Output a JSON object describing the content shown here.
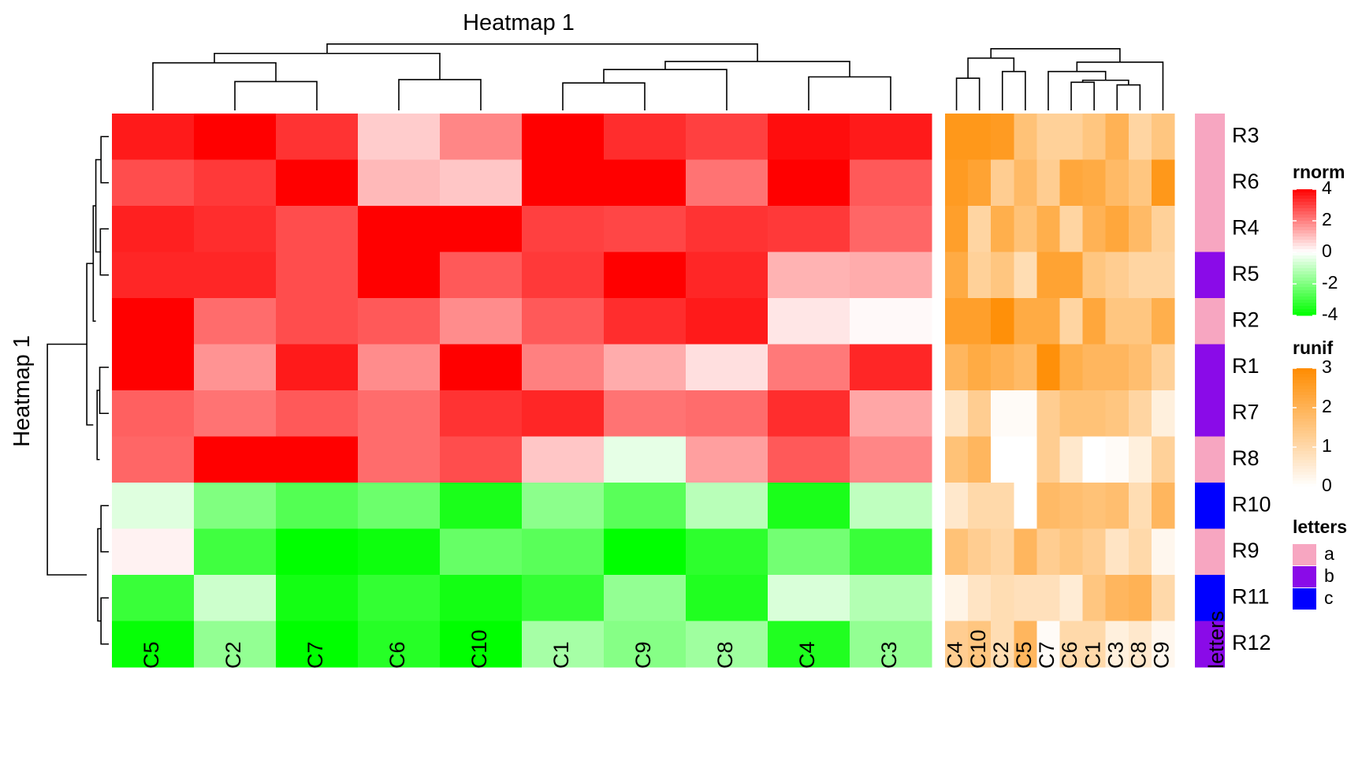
{
  "chart_data": {
    "type": "heatmap",
    "title": "Heatmap 1",
    "row_title": "Heatmap 1",
    "rows": [
      "R3",
      "R6",
      "R4",
      "R5",
      "R2",
      "R1",
      "R7",
      "R8",
      "R10",
      "R9",
      "R11",
      "R12"
    ],
    "rnorm": {
      "name": "rnorm",
      "columns": [
        "C5",
        "C2",
        "C7",
        "C6",
        "C10",
        "C1",
        "C9",
        "C8",
        "C4",
        "C3"
      ],
      "values": [
        [
          3.6,
          4.0,
          3.2,
          0.8,
          1.9,
          4.0,
          3.3,
          3.0,
          3.8,
          3.6
        ],
        [
          2.8,
          3.1,
          4.0,
          1.1,
          0.9,
          4.0,
          4.0,
          2.2,
          4.0,
          2.6
        ],
        [
          3.5,
          3.3,
          2.8,
          4.0,
          4.0,
          3.0,
          2.9,
          3.2,
          3.1,
          2.4
        ],
        [
          3.4,
          3.4,
          2.8,
          4.0,
          2.6,
          3.1,
          4.0,
          3.4,
          1.2,
          1.3
        ],
        [
          4.0,
          2.3,
          2.8,
          2.6,
          1.8,
          2.6,
          3.3,
          3.6,
          0.4,
          0.1
        ],
        [
          4.0,
          1.7,
          3.6,
          1.8,
          4.0,
          2.0,
          1.3,
          0.5,
          2.1,
          3.4
        ],
        [
          2.5,
          2.2,
          2.6,
          2.3,
          3.2,
          3.4,
          2.2,
          2.3,
          3.3,
          1.4
        ],
        [
          2.4,
          4.0,
          4.0,
          2.3,
          2.8,
          0.9,
          -0.4,
          1.5,
          2.6,
          1.9
        ],
        [
          -0.5,
          -2.0,
          -2.7,
          -2.3,
          -3.6,
          -1.8,
          -2.6,
          -1.1,
          -3.6,
          -1.0
        ],
        [
          0.2,
          -3.0,
          -4.0,
          -3.8,
          -2.4,
          -2.6,
          -4.0,
          -3.3,
          -2.2,
          -3.1
        ],
        [
          -3.1,
          -0.8,
          -3.7,
          -3.2,
          -3.7,
          -3.2,
          -1.7,
          -3.5,
          -0.6,
          -1.2
        ],
        [
          -3.9,
          -1.7,
          -4.0,
          -3.4,
          -4.0,
          -1.4,
          -1.9,
          -1.5,
          -3.5,
          -1.7
        ]
      ],
      "legend_title": "rnorm",
      "legend_ticks": [
        4,
        2,
        0,
        -2,
        -4
      ],
      "colors": {
        "high": "#ff0000",
        "mid": "#ffffff",
        "low": "#00ff00"
      },
      "range": [
        -4,
        4
      ]
    },
    "runif": {
      "name": "runif",
      "columns": [
        "C4",
        "C10",
        "C2",
        "C5",
        "C7",
        "C6",
        "C1",
        "C3",
        "C8",
        "C9"
      ],
      "values": [
        [
          2.7,
          2.7,
          2.6,
          1.6,
          1.2,
          1.2,
          1.5,
          2.0,
          1.1,
          1.5
        ],
        [
          2.6,
          2.4,
          1.3,
          1.8,
          1.3,
          2.3,
          2.2,
          1.8,
          1.5,
          2.7
        ],
        [
          2.5,
          1.1,
          2.1,
          1.6,
          2.1,
          1.1,
          2.0,
          2.3,
          1.8,
          1.2
        ],
        [
          2.2,
          1.2,
          1.5,
          0.9,
          2.4,
          2.4,
          1.5,
          1.3,
          1.1,
          1.1
        ],
        [
          2.5,
          2.5,
          2.9,
          2.2,
          2.2,
          1.1,
          2.3,
          1.5,
          1.5,
          2.1
        ],
        [
          1.9,
          2.2,
          2.0,
          1.8,
          2.9,
          2.1,
          1.9,
          1.9,
          1.7,
          1.2
        ],
        [
          0.7,
          1.3,
          0.1,
          0.1,
          1.3,
          1.6,
          1.6,
          1.5,
          1.1,
          0.4
        ],
        [
          1.6,
          1.9,
          0.0,
          0.0,
          1.3,
          0.6,
          0.0,
          0.1,
          0.4,
          1.2
        ],
        [
          0.6,
          1.0,
          1.0,
          0.0,
          1.8,
          1.7,
          1.6,
          1.7,
          0.9,
          1.9
        ],
        [
          1.6,
          1.3,
          1.1,
          1.9,
          1.3,
          1.5,
          1.3,
          0.7,
          1.0,
          0.2
        ],
        [
          0.3,
          0.7,
          0.9,
          0.8,
          0.8,
          0.5,
          1.5,
          1.9,
          2.0,
          1.0
        ],
        [
          1.3,
          1.5,
          0.9,
          1.9,
          0.1,
          1.0,
          1.0,
          0.4,
          0.6,
          0.2
        ]
      ],
      "legend_title": "runif",
      "legend_ticks": [
        3,
        2,
        1,
        0
      ],
      "colors": {
        "high": "#ff8c00",
        "low": "#ffffff"
      },
      "range": [
        0,
        3
      ]
    },
    "letters": {
      "name": "letters",
      "values": [
        "a",
        "a",
        "a",
        "b",
        "a",
        "b",
        "b",
        "a",
        "c",
        "a",
        "c",
        "b"
      ],
      "legend_title": "letters",
      "levels": [
        {
          "label": "a",
          "color": "#f7a6c1"
        },
        {
          "label": "b",
          "color": "#8a0be8"
        },
        {
          "label": "c",
          "color": "#0000ff"
        }
      ]
    }
  }
}
